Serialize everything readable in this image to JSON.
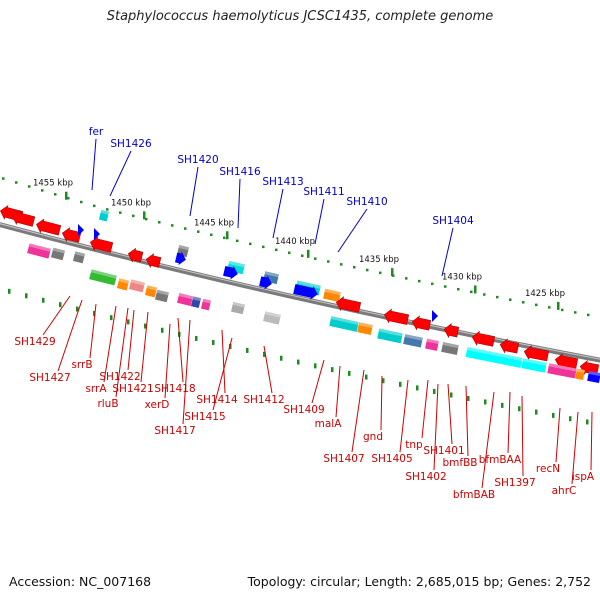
{
  "title": "Staphylococcus haemolyticus JCSC1435, complete genome",
  "footer": {
    "accession": "Accession: NC_007168",
    "summary": "Topology: circular; Length: 2,685,015 bp; Genes: 2,752"
  },
  "colors": {
    "top_label": "#0000cc",
    "bottom_label": "#cc0000",
    "backbone": "#7a7a7a",
    "tick_dots": "#1f8a1f"
  },
  "kbp_labels": [
    "1455 kbp",
    "1450 kbp",
    "1445 kbp",
    "1440 kbp",
    "1435 kbp",
    "1430 kbp",
    "1425 kbp"
  ],
  "top_labels": [
    "fer",
    "SH1426",
    "SH1420",
    "SH1416",
    "SH1413",
    "SH1411",
    "SH1410",
    "SH1404"
  ],
  "bottom_labels": [
    "SH1429",
    "SH1427",
    "srrB",
    "srrA",
    "rluB",
    "SH1422",
    "SH1421",
    "SH1418",
    "xerD",
    "SH1417",
    "SH1414",
    "SH1415",
    "SH1412",
    "SH1409",
    "malA",
    "SH1407",
    "gnd",
    "SH1405",
    "tnp",
    "SH1402",
    "SH1401",
    "bmfBB",
    "bfmBAB",
    "bfmBAA",
    "SH1397",
    "recN",
    "ahrC",
    "ispA"
  ]
}
